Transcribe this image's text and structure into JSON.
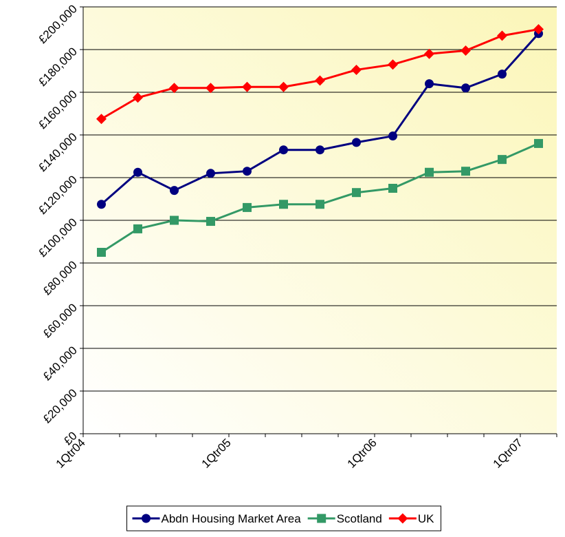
{
  "chart_data": {
    "type": "line",
    "categories": [
      "1Qtr04",
      null,
      null,
      null,
      "1Qtr05",
      null,
      null,
      null,
      "1Qtr06",
      null,
      null,
      null,
      "1Qtr07"
    ],
    "series": [
      {
        "name": "Abdn Housing Market Area",
        "color": "#000080",
        "marker": "circle",
        "values": [
          107500,
          122500,
          114000,
          122000,
          123000,
          133000,
          133000,
          136500,
          139500,
          164000,
          162000,
          168500,
          187500
        ]
      },
      {
        "name": "Scotland",
        "color": "#339966",
        "marker": "square",
        "values": [
          85000,
          96000,
          100000,
          99500,
          106000,
          107500,
          107500,
          113000,
          115000,
          122500,
          123000,
          128500,
          136000
        ]
      },
      {
        "name": "UK",
        "color": "#ff0000",
        "marker": "diamond",
        "values": [
          147500,
          157500,
          162000,
          162000,
          162500,
          162500,
          165500,
          170500,
          173000,
          178000,
          179500,
          186500,
          189500
        ]
      }
    ],
    "ylim": [
      0,
      200000
    ],
    "yticks": [
      {
        "value": 0,
        "label": "£0"
      },
      {
        "value": 20000,
        "label": "£20,000"
      },
      {
        "value": 40000,
        "label": "£40,000"
      },
      {
        "value": 60000,
        "label": "£60,000"
      },
      {
        "value": 80000,
        "label": "£80,000"
      },
      {
        "value": 100000,
        "label": "£100,000"
      },
      {
        "value": 120000,
        "label": "£120,000"
      },
      {
        "value": 140000,
        "label": "£140,000"
      },
      {
        "value": 160000,
        "label": "£160,000"
      },
      {
        "value": 180000,
        "label": "£180,000"
      },
      {
        "value": 200000,
        "label": "£200,000"
      }
    ],
    "grid": true,
    "legend": "bottom"
  }
}
